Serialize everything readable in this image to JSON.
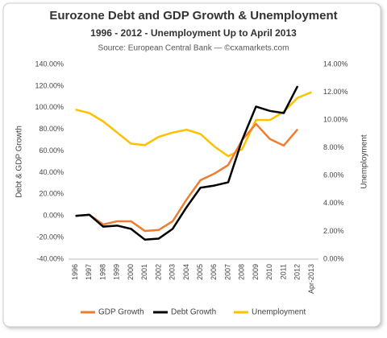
{
  "chart_data": {
    "type": "line",
    "title": "Eurozone Debt and GDP Growth & Unemployment",
    "subtitle": "1996 - 2012 - Unemployment Up to April 2013",
    "source": "Source: European Central Bank — ©cxamarkets.com",
    "y_label": "Debt & GDP Growth",
    "y2_label": "Unemployment",
    "categories": [
      "1996",
      "1997",
      "1998",
      "1999",
      "2000",
      "2001",
      "2002",
      "2003",
      "2004",
      "2005",
      "2006",
      "2007",
      "2008",
      "2009",
      "2010",
      "2011",
      "2012",
      "Apr-2013"
    ],
    "series": [
      {
        "name": "GDP Growth",
        "color": "#ed7d31",
        "values": [
          0,
          1,
          -8,
          -5,
          -5,
          -14,
          -13,
          -5,
          15,
          33,
          39,
          47,
          70,
          85,
          71,
          65,
          80,
          null
        ]
      },
      {
        "name": "Debt Growth",
        "color": "#000000",
        "values": [
          0,
          1,
          -10,
          -9,
          -12,
          -22,
          -21,
          -12,
          8,
          26,
          28,
          31,
          70,
          101,
          97,
          95,
          120,
          null
        ]
      },
      {
        "name": "Unemployment",
        "color": "#ffc000",
        "axis": "y2",
        "values": [
          10.75,
          10.5,
          9.9,
          9.1,
          8.3,
          8.2,
          8.8,
          9.1,
          9.3,
          9.0,
          8.1,
          7.4,
          7.9,
          10.0,
          10.0,
          10.6,
          11.6,
          12.0
        ]
      }
    ],
    "ylim": [
      -40,
      140
    ],
    "yticks": [
      {
        "value": -40,
        "label": "-40.00%"
      },
      {
        "value": -20,
        "label": "-20.00%"
      },
      {
        "value": 0,
        "label": "0.00%"
      },
      {
        "value": 20,
        "label": "20.00%"
      },
      {
        "value": 40,
        "label": "40.00%"
      },
      {
        "value": 60,
        "label": "60.00%"
      },
      {
        "value": 80,
        "label": "80.00%"
      },
      {
        "value": 100,
        "label": "100.00%"
      },
      {
        "value": 120,
        "label": "120.00%"
      },
      {
        "value": 140,
        "label": "140.00%"
      }
    ],
    "y2lim": [
      0,
      14
    ],
    "y2ticks": [
      {
        "value": 0,
        "label": "0.00%"
      },
      {
        "value": 2,
        "label": "2.00%"
      },
      {
        "value": 4,
        "label": "4.00%"
      },
      {
        "value": 6,
        "label": "6.00%"
      },
      {
        "value": 8,
        "label": "8.00%"
      },
      {
        "value": 10,
        "label": "10.00%"
      },
      {
        "value": 12,
        "label": "12.00%"
      },
      {
        "value": 14,
        "label": "14.00%"
      }
    ],
    "grid": false,
    "legend": "bottom"
  }
}
